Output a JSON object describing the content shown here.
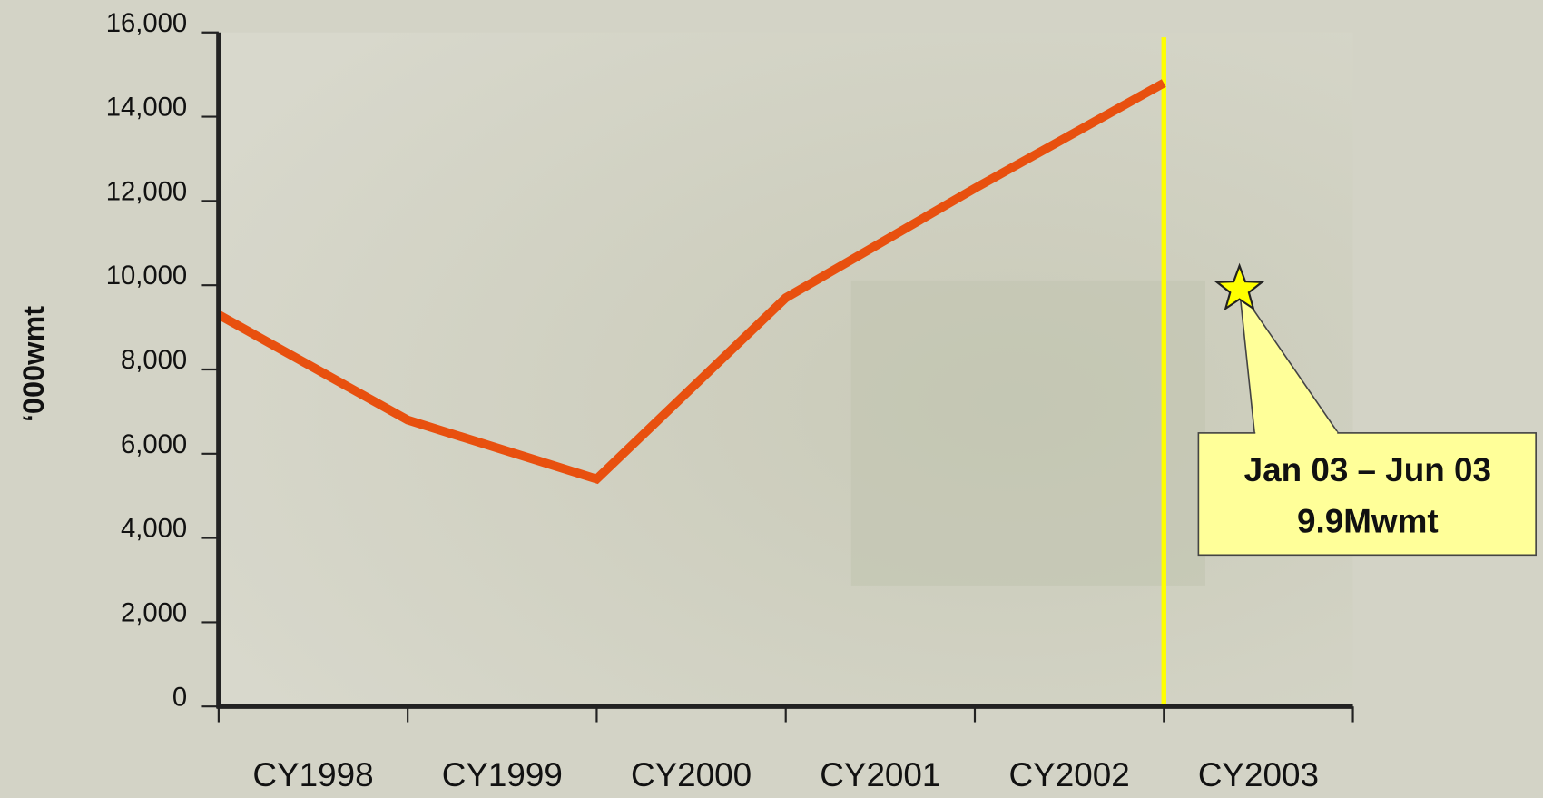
{
  "chart_data": {
    "type": "line",
    "y_label": "‘000wmt",
    "categories": [
      "CY1998",
      "CY1999",
      "CY2000",
      "CY2001",
      "CY2002",
      "CY2003"
    ],
    "series": [
      {
        "color": "#e8500f",
        "values": [
          9300,
          6800,
          5400,
          9700,
          12300,
          14800
        ]
      }
    ],
    "ylim": [
      0,
      16000
    ],
    "yticks": [
      0,
      {
        "value": 2000,
        "label": "2,000"
      },
      {
        "value": 4000,
        "label": "4,000"
      },
      {
        "value": 6000,
        "label": "6,000"
      },
      {
        "value": 8000,
        "label": "8,000"
      },
      {
        "value": 10000,
        "label": "10,000"
      },
      {
        "value": 12000,
        "label": "12,000"
      },
      {
        "value": 14000,
        "label": "14,000"
      },
      {
        "value": 16000,
        "label": "16,000"
      }
    ],
    "marker_color": "#ffff00",
    "annotation": {
      "lines": [
        "Jan 03 – Jun 03",
        "9.9Mwmt"
      ],
      "value": 9900
    }
  }
}
